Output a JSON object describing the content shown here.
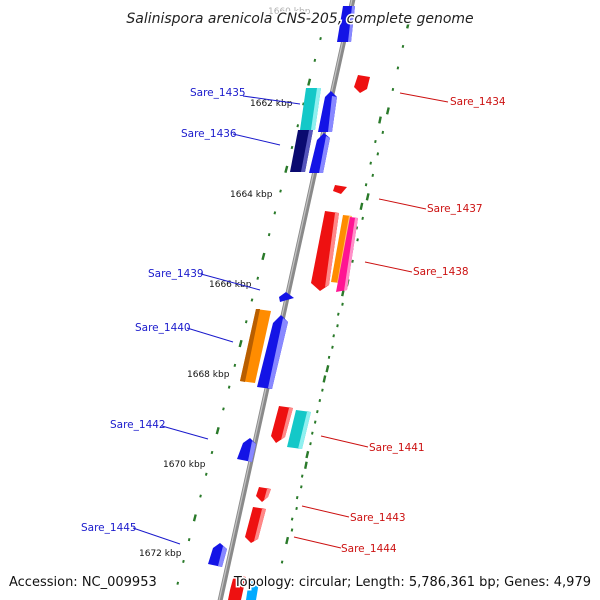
{
  "title": "Salinispora arenicola CNS-205, complete genome",
  "accession": "Accession: NC_009953",
  "topology": "Topology: circular; Length: 5,786,361 bp; Genes: 4,979",
  "ticks": [
    "1660 kbp",
    "1662 kbp",
    "1664 kbp",
    "1666 kbp",
    "1668 kbp",
    "1670 kbp",
    "1672 kbp"
  ],
  "colors": {
    "backbone": "#8a8a8a",
    "ruler_tick": "#2a7a2a",
    "forward_label": "#1a1acc",
    "reverse_label": "#cc1111",
    "blue": "#1414e6",
    "navy": "#0a0a70",
    "cyan": "#14c8c8",
    "red": "#ee1111",
    "orange": "#ff8c00",
    "magenta": "#ff1493",
    "skyblue": "#00aaff"
  },
  "genes": [
    {
      "label": "Sare_1435",
      "strand": "forward"
    },
    {
      "label": "Sare_1436",
      "strand": "forward"
    },
    {
      "label": "Sare_1439",
      "strand": "forward"
    },
    {
      "label": "Sare_1440",
      "strand": "forward"
    },
    {
      "label": "Sare_1442",
      "strand": "forward"
    },
    {
      "label": "Sare_1445",
      "strand": "forward"
    },
    {
      "label": "Sare_1434",
      "strand": "reverse"
    },
    {
      "label": "Sare_1437",
      "strand": "reverse"
    },
    {
      "label": "Sare_1438",
      "strand": "reverse"
    },
    {
      "label": "Sare_1441",
      "strand": "reverse"
    },
    {
      "label": "Sare_1443",
      "strand": "reverse"
    },
    {
      "label": "Sare_1444",
      "strand": "reverse"
    }
  ]
}
